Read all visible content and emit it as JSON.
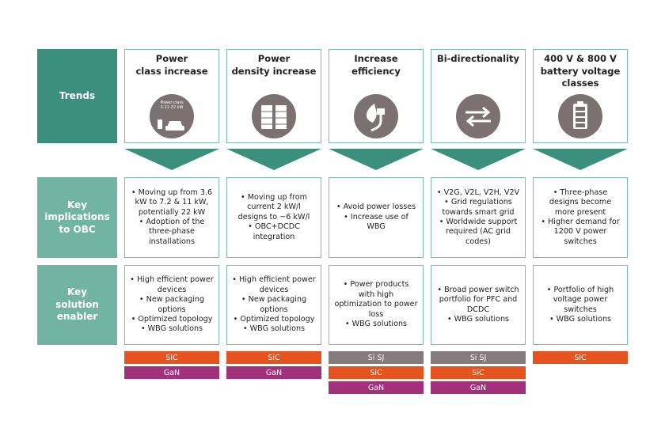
{
  "row_labels": [
    "Trends",
    "Key implications to OBC",
    "Key solution enabler"
  ],
  "icon_label": [
    "Power class",
    "3-11-22 kW"
  ],
  "columns": [
    {
      "title": [
        "Power",
        "class increase"
      ],
      "implications": [
        "Moving up from 3.6 kW to 7.2 & 11 kW, potentially 22 kW",
        "Adoption of the three-phase installations"
      ],
      "enablers": [
        "High efficient power devices",
        "New packaging options",
        "Optimized topology",
        "WBG solutions"
      ],
      "tags": [
        {
          "label": "SiC",
          "color": "#e5541f"
        },
        {
          "label": "GaN",
          "color": "#a3307a"
        }
      ]
    },
    {
      "title": [
        "Power",
        "density increase"
      ],
      "implications": [
        "Moving up from current 2 kW/l designs to ~6 kW/l",
        "OBC+DCDC integration"
      ],
      "enablers": [
        "High efficient power devices",
        "New packaging options",
        "Optimized topology",
        "WBG solutions"
      ],
      "tags": [
        {
          "label": "SiC",
          "color": "#e5541f"
        },
        {
          "label": "GaN",
          "color": "#a3307a"
        }
      ]
    },
    {
      "title": [
        "Increase",
        "efficiency"
      ],
      "implications": [
        "Avoid power losses",
        "Increase use of WBG"
      ],
      "enablers": [
        "Power products with high optimization to power loss",
        "WBG solutions"
      ],
      "tags": [
        {
          "label": "Si SJ",
          "color": "#857a7c"
        },
        {
          "label": "SiC",
          "color": "#e5541f"
        },
        {
          "label": "GaN",
          "color": "#a3307a"
        }
      ]
    },
    {
      "title": [
        "Bi-directionality"
      ],
      "implications": [
        "V2G, V2L, V2H, V2V",
        "Grid regulations towards smart grid",
        "Worldwide support required (AC grid codes)"
      ],
      "enablers": [
        "Broad power switch portfolio for PFC and DCDC",
        "WBG solutions"
      ],
      "tags": [
        {
          "label": "Si SJ",
          "color": "#857a7c"
        },
        {
          "label": "SiC",
          "color": "#e5541f"
        },
        {
          "label": "GaN",
          "color": "#a3307a"
        }
      ]
    },
    {
      "title": [
        "400 V & 800 V",
        "battery voltage",
        "classes"
      ],
      "implications": [
        "Three-phase designs become more present",
        "Higher demand for 1200 V power switches"
      ],
      "enablers": [
        "Portfolio of high voltage power switches",
        "WBG solutions"
      ],
      "tags": [
        {
          "label": "SiC",
          "color": "#e5541f"
        }
      ]
    }
  ]
}
